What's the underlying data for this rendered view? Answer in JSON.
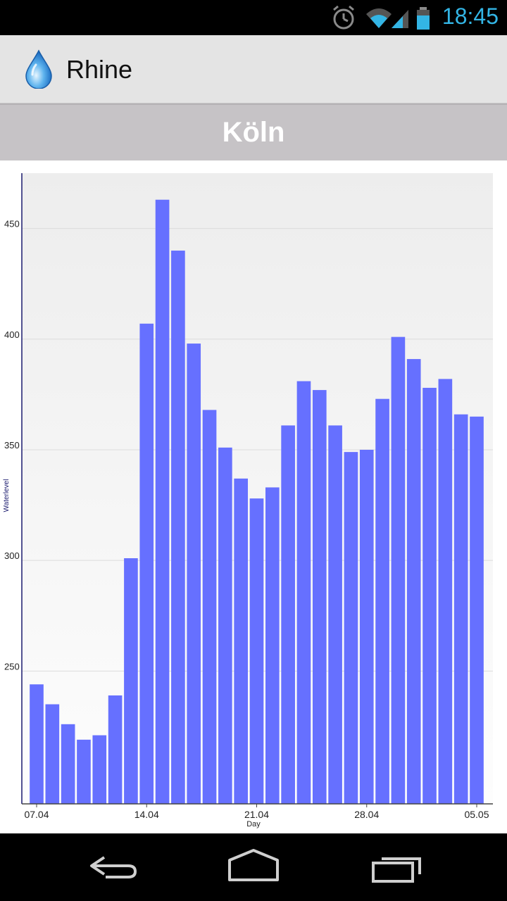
{
  "status_bar": {
    "time": "18:45",
    "icons": [
      "alarm-icon",
      "wifi-icon",
      "signal-icon",
      "battery-icon"
    ]
  },
  "action_bar": {
    "title": "Rhine",
    "icon": "water-drop-icon"
  },
  "header": {
    "city": "Köln"
  },
  "chart_data": {
    "type": "bar",
    "xlabel": "Day",
    "ylabel": "Waterlevel",
    "ylim": [
      190,
      475
    ],
    "y_ticks": [
      250,
      300,
      350,
      400,
      450
    ],
    "x_tick_labels": [
      {
        "label": "07.04",
        "index": 0
      },
      {
        "label": "14.04",
        "index": 7
      },
      {
        "label": "21.04",
        "index": 14
      },
      {
        "label": "28.04",
        "index": 21
      },
      {
        "label": "05.05",
        "index": 28
      }
    ],
    "grid": true,
    "bar_color": "#6670ff",
    "values": [
      244,
      235,
      226,
      219,
      221,
      239,
      301,
      407,
      463,
      440,
      398,
      368,
      351,
      337,
      328,
      333,
      361,
      381,
      377,
      361,
      349,
      350,
      373,
      401,
      391,
      378,
      382,
      366,
      365
    ]
  },
  "nav_bar": {
    "buttons": [
      "back-icon",
      "home-icon",
      "recent-apps-icon"
    ]
  }
}
